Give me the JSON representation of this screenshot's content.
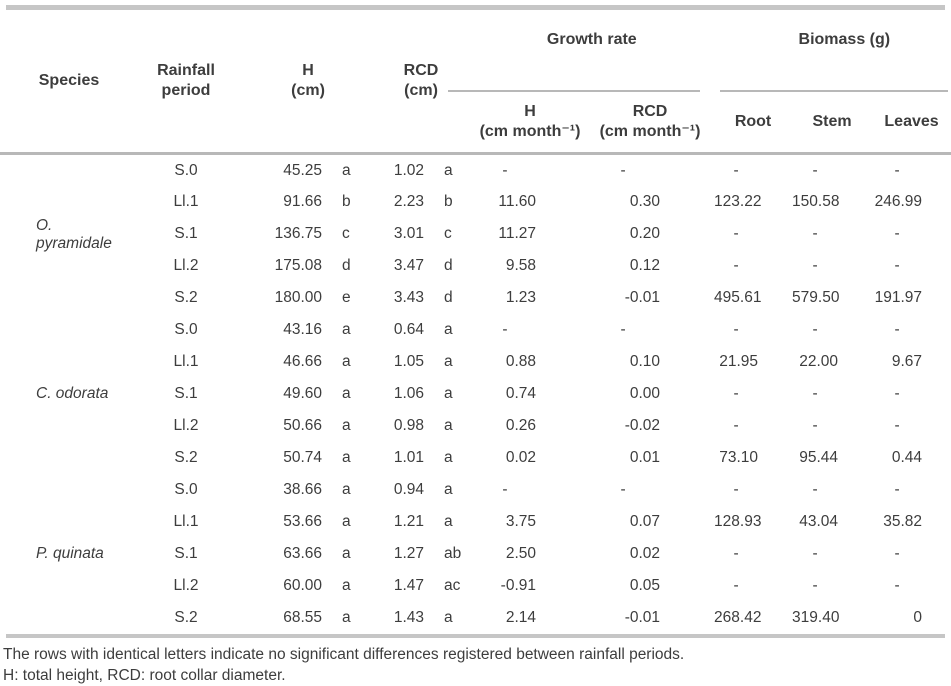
{
  "colors": {
    "text": "#3d3d3d",
    "rule_thick": "#c6c6c6",
    "rule_thin": "#b8b8b8",
    "background": "#ffffff"
  },
  "table": {
    "header": {
      "species": "Species",
      "rainfall_period": "Rainfall\nperiod",
      "h": "H\n(cm)",
      "rcd": "RCD\n(cm)",
      "growth_rate": "Growth rate",
      "growth_h": "H\n(cm month⁻¹)",
      "growth_rcd": "RCD\n(cm month⁻¹)",
      "biomass": "Biomass (g)",
      "root": "Root",
      "stem": "Stem",
      "leaves": "Leaves"
    },
    "species_groups": [
      {
        "species": "O. pyramidale",
        "rows": [
          {
            "period": "S.0",
            "h": "45.25",
            "h_sig": "a",
            "rcd": "1.02",
            "rcd_sig": "a",
            "growth_h": "-",
            "growth_rcd": "-",
            "root": "-",
            "stem": "-",
            "leaves": "-"
          },
          {
            "period": "Ll.1",
            "h": "91.66",
            "h_sig": "b",
            "rcd": "2.23",
            "rcd_sig": "b",
            "growth_h": "11.60",
            "growth_rcd": "0.30",
            "root": "123.22",
            "stem": "150.58",
            "leaves": "246.99"
          },
          {
            "period": "S.1",
            "h": "136.75",
            "h_sig": "c",
            "rcd": "3.01",
            "rcd_sig": "c",
            "growth_h": "11.27",
            "growth_rcd": "0.20",
            "root": "-",
            "stem": "-",
            "leaves": "-"
          },
          {
            "period": "Ll.2",
            "h": "175.08",
            "h_sig": "d",
            "rcd": "3.47",
            "rcd_sig": "d",
            "growth_h": "9.58",
            "growth_rcd": "0.12",
            "root": "-",
            "stem": "-",
            "leaves": "-"
          },
          {
            "period": "S.2",
            "h": "180.00",
            "h_sig": "e",
            "rcd": "3.43",
            "rcd_sig": "d",
            "growth_h": "1.23",
            "growth_rcd": "-0.01",
            "root": "495.61",
            "stem": "579.50",
            "leaves": "191.97"
          }
        ]
      },
      {
        "species": "C. odorata",
        "rows": [
          {
            "period": "S.0",
            "h": "43.16",
            "h_sig": "a",
            "rcd": "0.64",
            "rcd_sig": "a",
            "growth_h": "-",
            "growth_rcd": "-",
            "root": "-",
            "stem": "-",
            "leaves": "-"
          },
          {
            "period": "Ll.1",
            "h": "46.66",
            "h_sig": "a",
            "rcd": "1.05",
            "rcd_sig": "a",
            "growth_h": "0.88",
            "growth_rcd": "0.10",
            "root": "21.95",
            "stem": "22.00",
            "leaves": "9.67"
          },
          {
            "period": "S.1",
            "h": "49.60",
            "h_sig": "a",
            "rcd": "1.06",
            "rcd_sig": "a",
            "growth_h": "0.74",
            "growth_rcd": "0.00",
            "root": "-",
            "stem": "-",
            "leaves": "-"
          },
          {
            "period": "Ll.2",
            "h": "50.66",
            "h_sig": "a",
            "rcd": "0.98",
            "rcd_sig": "a",
            "growth_h": "0.26",
            "growth_rcd": "-0.02",
            "root": "-",
            "stem": "-",
            "leaves": "-"
          },
          {
            "period": "S.2",
            "h": "50.74",
            "h_sig": "a",
            "rcd": "1.01",
            "rcd_sig": "a",
            "growth_h": "0.02",
            "growth_rcd": "0.01",
            "root": "73.10",
            "stem": "95.44",
            "leaves": "0.44"
          }
        ]
      },
      {
        "species": "P. quinata",
        "rows": [
          {
            "period": "S.0",
            "h": "38.66",
            "h_sig": "a",
            "rcd": "0.94",
            "rcd_sig": "a",
            "growth_h": "-",
            "growth_rcd": "-",
            "root": "-",
            "stem": "-",
            "leaves": "-"
          },
          {
            "period": "Ll.1",
            "h": "53.66",
            "h_sig": "a",
            "rcd": "1.21",
            "rcd_sig": "a",
            "growth_h": "3.75",
            "growth_rcd": "0.07",
            "root": "128.93",
            "stem": "43.04",
            "leaves": "35.82"
          },
          {
            "period": "S.1",
            "h": "63.66",
            "h_sig": "a",
            "rcd": "1.27",
            "rcd_sig": "ab",
            "growth_h": "2.50",
            "growth_rcd": "0.02",
            "root": "-",
            "stem": "-",
            "leaves": "-"
          },
          {
            "period": "Ll.2",
            "h": "60.00",
            "h_sig": "a",
            "rcd": "1.47",
            "rcd_sig": "ac",
            "growth_h": "-0.91",
            "growth_rcd": "0.05",
            "root": "-",
            "stem": "-",
            "leaves": "-"
          },
          {
            "period": "S.2",
            "h": "68.55",
            "h_sig": "a",
            "rcd": "1.43",
            "rcd_sig": "a",
            "growth_h": "2.14",
            "growth_rcd": "-0.01",
            "root": "268.42",
            "stem": "319.40",
            "leaves": "0"
          }
        ]
      }
    ],
    "footnotes": [
      "The rows with identical letters indicate no significant differences registered between rainfall periods.",
      "H: total height, RCD: root collar diameter."
    ]
  }
}
